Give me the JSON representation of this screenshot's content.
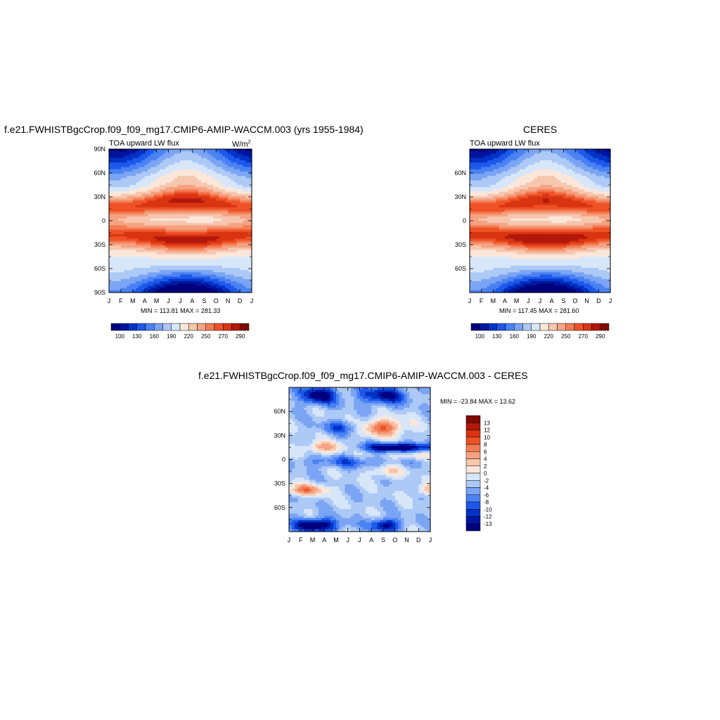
{
  "colors": {
    "abs_scale": [
      "#00007f",
      "#00159f",
      "#0033c5",
      "#1d58eb",
      "#4a82f3",
      "#7ba4f4",
      "#adc9f6",
      "#d8e6f9",
      "#fbe7da",
      "#f7c6ae",
      "#f5a282",
      "#f37c55",
      "#ee5226",
      "#d93412",
      "#b2180a",
      "#7e0a00"
    ],
    "diff_scale": [
      "#00007f",
      "#0015a3",
      "#0033c5",
      "#1d58eb",
      "#4a82f3",
      "#7ba4f4",
      "#adc9f6",
      "#d8e6f9",
      "#fbe7da",
      "#f7c6ae",
      "#f5a282",
      "#f37c55",
      "#ee5226",
      "#d93412",
      "#b2180a",
      "#7e0a00"
    ]
  },
  "panel_model": {
    "title": "f.e21.FWHISTBgcCrop.f09_f09_mg17.CMIP6-AMIP-WACCM.003 (yrs 1955-1984)",
    "subtitle": "TOA upward LW flux",
    "units": "W/m",
    "units_sup": "2",
    "stats": "MIN = 113.81 MAX = 281.33",
    "yticks": [
      "90N",
      "60N",
      "30N",
      "0",
      "30S",
      "60S",
      "90S"
    ],
    "xticks": [
      "J",
      "F",
      "M",
      "A",
      "M",
      "J",
      "J",
      "A",
      "S",
      "O",
      "N",
      "D",
      "J"
    ],
    "colorbar_labels": [
      "100",
      "130",
      "160",
      "190",
      "220",
      "250",
      "270",
      "290"
    ]
  },
  "panel_obs": {
    "title": "CERES",
    "subtitle": "TOA upward LW flux",
    "stats": "MIN = 117.45 MAX = 281.60",
    "yticks": [
      "60N",
      "30N",
      "0",
      "30S",
      "60S"
    ],
    "xticks": [
      "J",
      "F",
      "M",
      "A",
      "M",
      "J",
      "J",
      "A",
      "S",
      "O",
      "N",
      "D",
      "J"
    ],
    "colorbar_labels": [
      "100",
      "130",
      "160",
      "190",
      "220",
      "250",
      "270",
      "290"
    ]
  },
  "panel_diff": {
    "title": "f.e21.FWHISTBgcCrop.f09_f09_mg17.CMIP6-AMIP-WACCM.003 - CERES",
    "stats": "MIN = -23.84 MAX =  13.62",
    "yticks": [
      "60N",
      "30N",
      "0",
      "30S",
      "60S"
    ],
    "xticks": [
      "J",
      "F",
      "M",
      "A",
      "M",
      "J",
      "J",
      "A",
      "S",
      "O",
      "N",
      "D",
      "J"
    ],
    "colorbar_labels": [
      "13",
      "12",
      "10",
      "8",
      "6",
      "4",
      "2",
      "0",
      "-2",
      "-4",
      "-6",
      "-8",
      "-10",
      "-12",
      "-13"
    ]
  },
  "chart_data": [
    {
      "type": "heatmap",
      "title": "f.e21.FWHISTBgcCrop.f09_f09_mg17.CMIP6-AMIP-WACCM.003 (yrs 1955-1984)",
      "subtitle": "TOA upward LW flux",
      "units": "W/m2",
      "x": [
        "J",
        "F",
        "M",
        "A",
        "M",
        "J",
        "J",
        "A",
        "S",
        "O",
        "N",
        "D",
        "J"
      ],
      "y": [
        "90N",
        "60N",
        "30N",
        "0",
        "30S",
        "60S",
        "90S"
      ],
      "min": 113.81,
      "max": 281.33,
      "levels": [
        100,
        130,
        160,
        190,
        220,
        250,
        270,
        290
      ]
    },
    {
      "type": "heatmap",
      "title": "CERES",
      "subtitle": "TOA upward LW flux",
      "x": [
        "J",
        "F",
        "M",
        "A",
        "M",
        "J",
        "J",
        "A",
        "S",
        "O",
        "N",
        "D",
        "J"
      ],
      "y": [
        "60N",
        "30N",
        "0",
        "30S",
        "60S"
      ],
      "min": 117.45,
      "max": 281.6,
      "levels": [
        100,
        130,
        160,
        190,
        220,
        250,
        270,
        290
      ]
    },
    {
      "type": "heatmap",
      "title": "f.e21.FWHISTBgcCrop.f09_f09_mg17.CMIP6-AMIP-WACCM.003 - CERES",
      "x": [
        "J",
        "F",
        "M",
        "A",
        "M",
        "J",
        "J",
        "A",
        "S",
        "O",
        "N",
        "D",
        "J"
      ],
      "y": [
        "60N",
        "30N",
        "0",
        "30S",
        "60S"
      ],
      "min": -23.84,
      "max": 13.62,
      "levels": [
        -13,
        -12,
        -10,
        -8,
        -6,
        -4,
        -2,
        0,
        2,
        4,
        6,
        8,
        10,
        12,
        13
      ]
    }
  ]
}
